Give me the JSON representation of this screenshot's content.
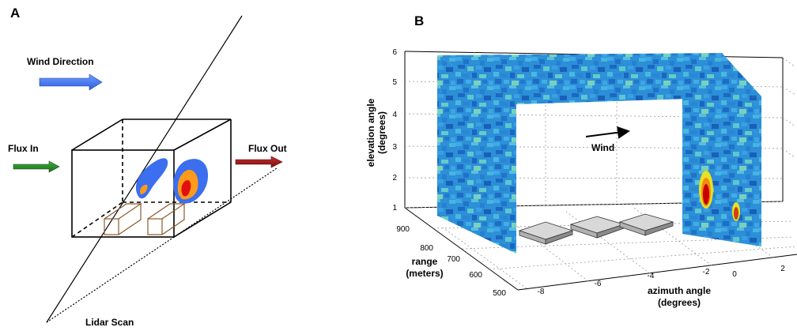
{
  "panel_a": {
    "letter": "A",
    "labels": {
      "wind_direction": "Wind Direction",
      "flux_in": "Flux In",
      "flux_out": "Flux Out",
      "lidar_scan": "Lidar Scan"
    },
    "colors": {
      "wind_arrow": "#4d7ff0",
      "flux_in_arrow": "#2e8b2e",
      "flux_out_arrow": "#a11a1a",
      "plume_blue": "#3b6ff0",
      "plume_orange": "#ff9a1a",
      "plume_red": "#e01010",
      "source_outline": "#8b5a2b"
    }
  },
  "panel_b": {
    "letter": "B",
    "wind_label": "Wind",
    "axes": {
      "elevation": {
        "title_lines": [
          "elevation angle",
          "(degrees)"
        ],
        "ticks": [
          "1",
          "2",
          "3",
          "4",
          "5",
          "6"
        ]
      },
      "range": {
        "title_lines": [
          "range",
          "(meters)"
        ],
        "ticks": [
          "500",
          "600",
          "700",
          "800",
          "900"
        ]
      },
      "azimuth": {
        "title_lines": [
          "azimuth angle",
          "(degrees)"
        ],
        "ticks": [
          "-8",
          "-6",
          "-4",
          "-2",
          "0",
          "2"
        ]
      }
    },
    "colors": {
      "scan_base": "#2a8fd6",
      "hot_red": "#c80000",
      "hot_yellow": "#e8e020"
    }
  }
}
